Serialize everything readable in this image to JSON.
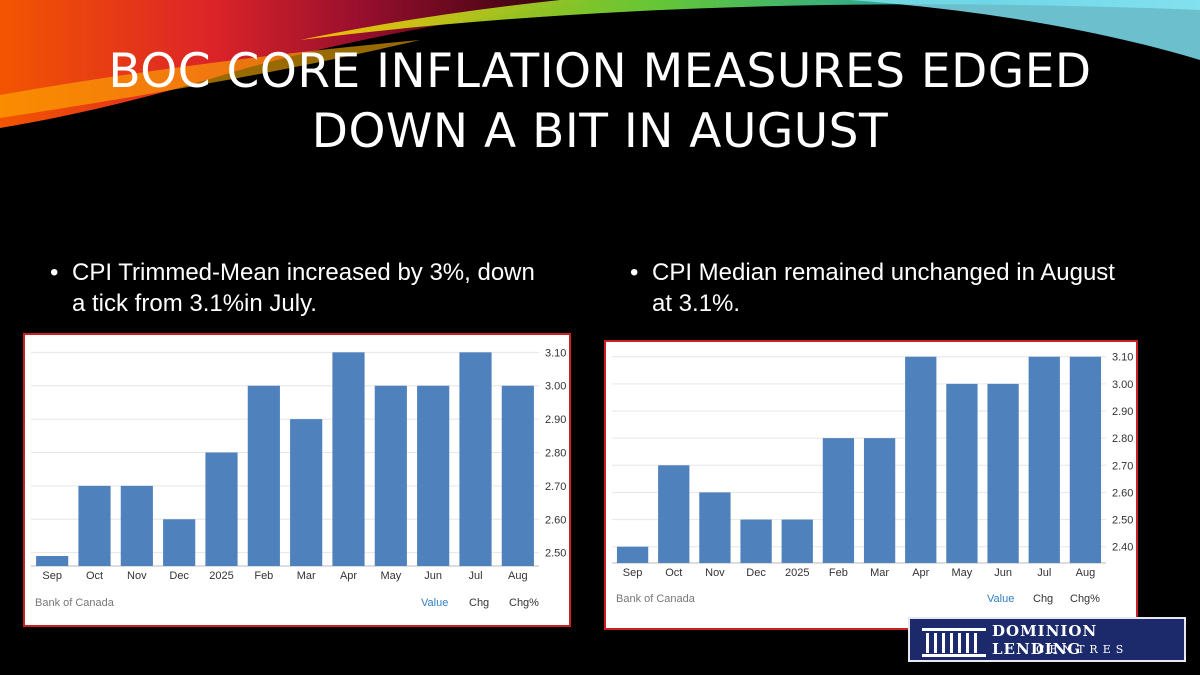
{
  "slide": {
    "title_line1": "BOC CORE INFLATION MEASURES EDGED",
    "title_line2": "DOWN A BIT IN AUGUST",
    "bullet_left": "CPI Trimmed-Mean increased by 3%, down a tick from 3.1%in July.",
    "bullet_right": "CPI Median remained unchanged in August at 3.1%.",
    "bullet_glyph": "•"
  },
  "logo": {
    "name_line1": "DOMINION LENDING",
    "name_line2": "CENTRES"
  },
  "chart_data": [
    {
      "type": "bar",
      "categories": [
        "Sep",
        "Oct",
        "Nov",
        "Dec",
        "2025",
        "Feb",
        "Mar",
        "Apr",
        "May",
        "Jun",
        "Jul",
        "Aug"
      ],
      "values": [
        2.49,
        2.7,
        2.7,
        2.6,
        2.8,
        3.0,
        2.9,
        3.1,
        3.0,
        3.0,
        3.1,
        3.0
      ],
      "yticks": [
        2.5,
        2.6,
        2.7,
        2.8,
        2.9,
        3.0,
        3.1
      ],
      "ytick_labels": [
        "2.50",
        "2.60",
        "2.70",
        "2.80",
        "2.90",
        "3.00",
        "3.10"
      ],
      "ylim": [
        2.46,
        3.11
      ],
      "bar_color": "#4f81bd",
      "source": "Bank of Canada",
      "tabs": [
        "Value",
        "Chg",
        "Chg%"
      ],
      "active_tab": "Value"
    },
    {
      "type": "bar",
      "categories": [
        "Sep",
        "Oct",
        "Nov",
        "Dec",
        "2025",
        "Feb",
        "Mar",
        "Apr",
        "May",
        "Jun",
        "Jul",
        "Aug"
      ],
      "values": [
        2.4,
        2.7,
        2.6,
        2.5,
        2.5,
        2.8,
        2.8,
        3.1,
        3.0,
        3.0,
        3.1,
        3.1
      ],
      "yticks": [
        2.4,
        2.5,
        2.6,
        2.7,
        2.8,
        2.9,
        3.0,
        3.1
      ],
      "ytick_labels": [
        "2.40",
        "2.50",
        "2.60",
        "2.70",
        "2.80",
        "2.90",
        "3.00",
        "3.10"
      ],
      "ylim": [
        2.34,
        3.11
      ],
      "bar_color": "#4f81bd",
      "source": "Bank of Canada",
      "tabs": [
        "Value",
        "Chg",
        "Chg%"
      ],
      "active_tab": "Value"
    }
  ]
}
